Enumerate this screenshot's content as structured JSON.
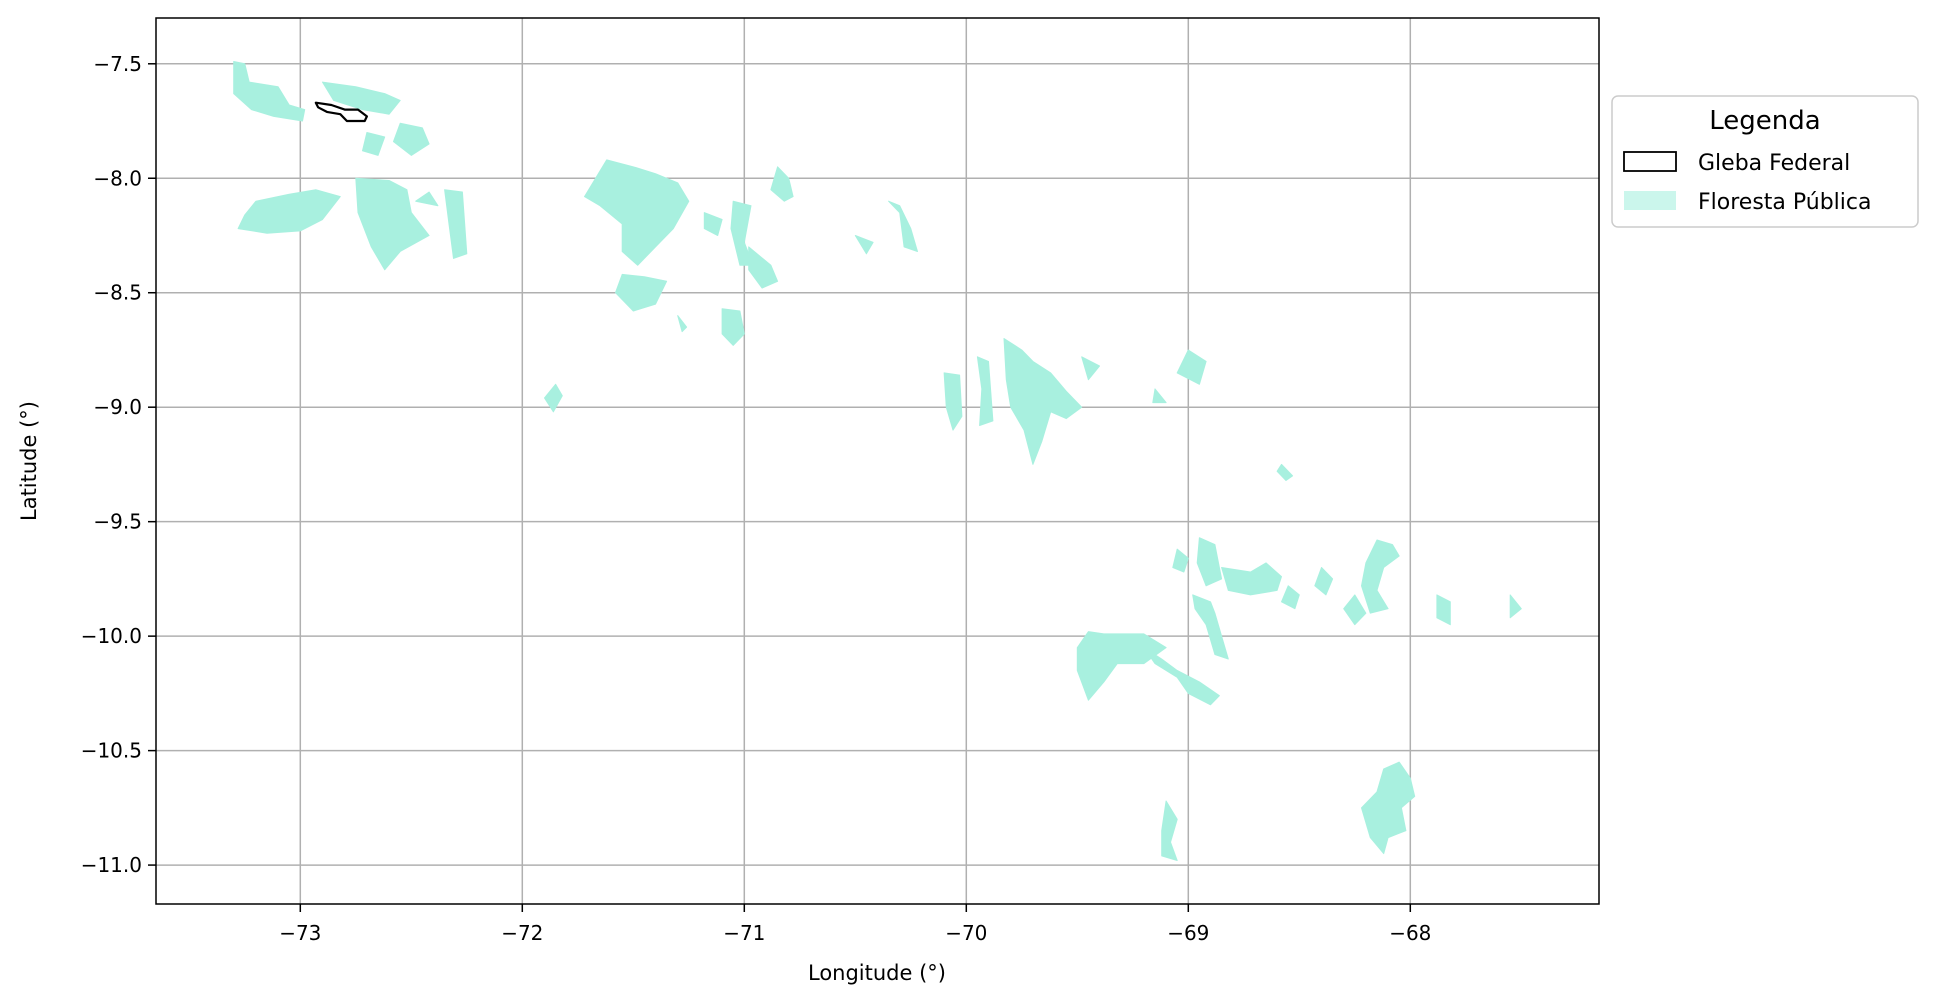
{
  "colors": {
    "forest": "#a8f0df",
    "gleba_edge": "#000000",
    "grid": "#b0b0b0",
    "axes": "#000000"
  },
  "axes": {
    "xlabel": "Longitude (°)",
    "ylabel": "Latitude (°)",
    "xlim": [
      -73.65,
      -67.15
    ],
    "ylim": [
      -11.17,
      -7.3
    ],
    "xticks": [
      -73,
      -72,
      -71,
      -70,
      -69,
      -68
    ],
    "xtick_labels": [
      "−73",
      "−72",
      "−71",
      "−70",
      "−69",
      "−68"
    ],
    "yticks": [
      -7.5,
      -8.0,
      -8.5,
      -9.0,
      -9.5,
      -10.0,
      -10.5,
      -11.0
    ],
    "ytick_labels": [
      "−7.5",
      "−8.0",
      "−8.5",
      "−9.0",
      "−9.5",
      "−10.0",
      "−10.5",
      "−11.0"
    ],
    "grid": true
  },
  "legend": {
    "title": "Legenda",
    "placement": "upper-right-outside",
    "items": [
      {
        "label": "Gleba Federal",
        "style": "outline"
      },
      {
        "label": "Floresta Pública",
        "style": "fill"
      }
    ]
  },
  "chart_data": {
    "type": "map",
    "title": "",
    "xlabel": "Longitude (°)",
    "ylabel": "Latitude (°)",
    "layers": [
      {
        "name": "Gleba Federal",
        "style": "outline",
        "polygons": [
          [
            [
              -72.93,
              -7.67
            ],
            [
              -72.86,
              -7.68
            ],
            [
              -72.8,
              -7.7
            ],
            [
              -72.74,
              -7.7
            ],
            [
              -72.7,
              -7.73
            ],
            [
              -72.71,
              -7.75
            ],
            [
              -72.79,
              -7.75
            ],
            [
              -72.82,
              -7.72
            ],
            [
              -72.88,
              -7.71
            ],
            [
              -72.92,
              -7.69
            ]
          ]
        ]
      },
      {
        "name": "Floresta Pública",
        "style": "fill",
        "polygons": [
          [
            [
              -73.3,
              -7.49
            ],
            [
              -73.25,
              -7.5
            ],
            [
              -73.23,
              -7.58
            ],
            [
              -73.1,
              -7.6
            ],
            [
              -73.05,
              -7.68
            ],
            [
              -72.98,
              -7.7
            ],
            [
              -72.99,
              -7.75
            ],
            [
              -73.12,
              -7.73
            ],
            [
              -73.22,
              -7.7
            ],
            [
              -73.3,
              -7.63
            ]
          ],
          [
            [
              -72.9,
              -7.58
            ],
            [
              -72.75,
              -7.6
            ],
            [
              -72.62,
              -7.63
            ],
            [
              -72.55,
              -7.66
            ],
            [
              -72.6,
              -7.72
            ],
            [
              -72.72,
              -7.7
            ],
            [
              -72.85,
              -7.66
            ]
          ],
          [
            [
              -72.55,
              -7.76
            ],
            [
              -72.45,
              -7.78
            ],
            [
              -72.42,
              -7.85
            ],
            [
              -72.5,
              -7.9
            ],
            [
              -72.58,
              -7.84
            ]
          ],
          [
            [
              -73.2,
              -8.1
            ],
            [
              -73.05,
              -8.07
            ],
            [
              -72.93,
              -8.05
            ],
            [
              -72.82,
              -8.08
            ],
            [
              -72.9,
              -8.18
            ],
            [
              -73.0,
              -8.23
            ],
            [
              -73.15,
              -8.24
            ],
            [
              -73.28,
              -8.22
            ],
            [
              -73.25,
              -8.16
            ]
          ],
          [
            [
              -72.75,
              -8.0
            ],
            [
              -72.6,
              -8.01
            ],
            [
              -72.52,
              -8.05
            ],
            [
              -72.5,
              -8.15
            ],
            [
              -72.42,
              -8.25
            ],
            [
              -72.55,
              -8.32
            ],
            [
              -72.62,
              -8.4
            ],
            [
              -72.68,
              -8.3
            ],
            [
              -72.74,
              -8.15
            ]
          ],
          [
            [
              -72.7,
              -7.8
            ],
            [
              -72.62,
              -7.82
            ],
            [
              -72.65,
              -7.9
            ],
            [
              -72.72,
              -7.88
            ]
          ],
          [
            [
              -72.42,
              -8.06
            ],
            [
              -72.38,
              -8.12
            ],
            [
              -72.48,
              -8.1
            ]
          ],
          [
            [
              -72.35,
              -8.05
            ],
            [
              -72.27,
              -8.06
            ],
            [
              -72.25,
              -8.33
            ],
            [
              -72.31,
              -8.35
            ],
            [
              -72.33,
              -8.2
            ]
          ],
          [
            [
              -71.62,
              -7.92
            ],
            [
              -71.5,
              -7.95
            ],
            [
              -71.4,
              -7.98
            ],
            [
              -71.3,
              -8.02
            ],
            [
              -71.25,
              -8.1
            ],
            [
              -71.32,
              -8.22
            ],
            [
              -71.4,
              -8.3
            ],
            [
              -71.48,
              -8.38
            ],
            [
              -71.55,
              -8.32
            ],
            [
              -71.55,
              -8.2
            ],
            [
              -71.65,
              -8.12
            ],
            [
              -71.72,
              -8.08
            ]
          ],
          [
            [
              -71.55,
              -8.42
            ],
            [
              -71.45,
              -8.43
            ],
            [
              -71.35,
              -8.45
            ],
            [
              -71.4,
              -8.55
            ],
            [
              -71.5,
              -8.58
            ],
            [
              -71.58,
              -8.5
            ]
          ],
          [
            [
              -71.18,
              -8.15
            ],
            [
              -71.1,
              -8.18
            ],
            [
              -71.12,
              -8.25
            ],
            [
              -71.18,
              -8.22
            ]
          ],
          [
            [
              -71.05,
              -8.1
            ],
            [
              -70.97,
              -8.12
            ],
            [
              -71.0,
              -8.28
            ],
            [
              -70.96,
              -8.38
            ],
            [
              -71.02,
              -8.38
            ],
            [
              -71.06,
              -8.22
            ]
          ],
          [
            [
              -70.98,
              -8.3
            ],
            [
              -70.88,
              -8.38
            ],
            [
              -70.85,
              -8.45
            ],
            [
              -70.92,
              -8.48
            ],
            [
              -70.98,
              -8.4
            ]
          ],
          [
            [
              -71.1,
              -8.57
            ],
            [
              -71.02,
              -8.58
            ],
            [
              -71.0,
              -8.68
            ],
            [
              -71.05,
              -8.73
            ],
            [
              -71.1,
              -8.68
            ]
          ],
          [
            [
              -70.85,
              -7.95
            ],
            [
              -70.8,
              -8.0
            ],
            [
              -70.78,
              -8.08
            ],
            [
              -70.82,
              -8.1
            ],
            [
              -70.88,
              -8.05
            ]
          ],
          [
            [
              -71.3,
              -8.6
            ],
            [
              -71.26,
              -8.65
            ],
            [
              -71.28,
              -8.67
            ]
          ],
          [
            [
              -71.85,
              -8.9
            ],
            [
              -71.82,
              -8.95
            ],
            [
              -71.86,
              -9.02
            ],
            [
              -71.9,
              -8.96
            ]
          ],
          [
            [
              -70.35,
              -8.1
            ],
            [
              -70.3,
              -8.15
            ],
            [
              -70.28,
              -8.3
            ],
            [
              -70.22,
              -8.32
            ],
            [
              -70.25,
              -8.22
            ],
            [
              -70.3,
              -8.12
            ]
          ],
          [
            [
              -70.5,
              -8.25
            ],
            [
              -70.42,
              -8.28
            ],
            [
              -70.45,
              -8.33
            ]
          ],
          [
            [
              -70.1,
              -8.85
            ],
            [
              -70.03,
              -8.86
            ],
            [
              -70.02,
              -9.04
            ],
            [
              -70.06,
              -9.1
            ],
            [
              -70.09,
              -9.0
            ]
          ],
          [
            [
              -69.95,
              -8.78
            ],
            [
              -69.9,
              -8.8
            ],
            [
              -69.88,
              -9.06
            ],
            [
              -69.94,
              -9.08
            ],
            [
              -69.93,
              -8.92
            ]
          ],
          [
            [
              -69.83,
              -8.7
            ],
            [
              -69.75,
              -8.75
            ],
            [
              -69.7,
              -8.8
            ],
            [
              -69.62,
              -8.85
            ],
            [
              -69.55,
              -8.93
            ],
            [
              -69.48,
              -9.0
            ],
            [
              -69.55,
              -9.05
            ],
            [
              -69.62,
              -9.02
            ],
            [
              -69.66,
              -9.15
            ],
            [
              -69.7,
              -9.25
            ],
            [
              -69.74,
              -9.1
            ],
            [
              -69.8,
              -9.0
            ],
            [
              -69.82,
              -8.88
            ]
          ],
          [
            [
              -69.48,
              -8.78
            ],
            [
              -69.4,
              -8.82
            ],
            [
              -69.45,
              -8.88
            ]
          ],
          [
            [
              -69.0,
              -8.75
            ],
            [
              -68.92,
              -8.8
            ],
            [
              -68.95,
              -8.9
            ],
            [
              -69.05,
              -8.85
            ]
          ],
          [
            [
              -69.15,
              -8.92
            ],
            [
              -69.1,
              -8.98
            ],
            [
              -69.16,
              -8.98
            ]
          ],
          [
            [
              -68.58,
              -9.25
            ],
            [
              -68.53,
              -9.3
            ],
            [
              -68.56,
              -9.32
            ],
            [
              -68.6,
              -9.28
            ]
          ],
          [
            [
              -69.05,
              -9.62
            ],
            [
              -69.0,
              -9.66
            ],
            [
              -69.02,
              -9.72
            ],
            [
              -69.07,
              -9.7
            ]
          ],
          [
            [
              -68.95,
              -9.57
            ],
            [
              -68.88,
              -9.6
            ],
            [
              -68.85,
              -9.75
            ],
            [
              -68.92,
              -9.78
            ],
            [
              -68.96,
              -9.68
            ]
          ],
          [
            [
              -68.85,
              -9.7
            ],
            [
              -68.72,
              -9.72
            ],
            [
              -68.65,
              -9.68
            ],
            [
              -68.58,
              -9.74
            ],
            [
              -68.6,
              -9.8
            ],
            [
              -68.72,
              -9.82
            ],
            [
              -68.82,
              -9.8
            ]
          ],
          [
            [
              -68.98,
              -9.82
            ],
            [
              -68.9,
              -9.85
            ],
            [
              -68.88,
              -9.9
            ],
            [
              -68.85,
              -10.0
            ],
            [
              -68.82,
              -10.1
            ],
            [
              -68.88,
              -10.08
            ],
            [
              -68.92,
              -9.95
            ],
            [
              -68.97,
              -9.88
            ]
          ],
          [
            [
              -69.45,
              -9.98
            ],
            [
              -69.38,
              -9.99
            ],
            [
              -69.2,
              -9.99
            ],
            [
              -69.1,
              -10.05
            ],
            [
              -69.2,
              -10.12
            ],
            [
              -69.32,
              -10.12
            ],
            [
              -69.38,
              -10.2
            ],
            [
              -69.45,
              -10.28
            ],
            [
              -69.5,
              -10.15
            ],
            [
              -69.5,
              -10.05
            ]
          ],
          [
            [
              -69.2,
              -10.05
            ],
            [
              -69.15,
              -10.12
            ],
            [
              -69.05,
              -10.18
            ],
            [
              -69.0,
              -10.25
            ],
            [
              -68.9,
              -10.3
            ],
            [
              -68.86,
              -10.26
            ],
            [
              -68.95,
              -10.2
            ],
            [
              -69.05,
              -10.15
            ],
            [
              -69.12,
              -10.1
            ]
          ],
          [
            [
              -68.15,
              -9.58
            ],
            [
              -68.08,
              -9.6
            ],
            [
              -68.05,
              -9.65
            ],
            [
              -68.12,
              -9.7
            ],
            [
              -68.15,
              -9.8
            ],
            [
              -68.1,
              -9.88
            ],
            [
              -68.18,
              -9.9
            ],
            [
              -68.22,
              -9.78
            ],
            [
              -68.2,
              -9.68
            ]
          ],
          [
            [
              -67.88,
              -9.82
            ],
            [
              -67.82,
              -9.85
            ],
            [
              -67.82,
              -9.95
            ],
            [
              -67.88,
              -9.92
            ]
          ],
          [
            [
              -68.25,
              -9.82
            ],
            [
              -68.2,
              -9.9
            ],
            [
              -68.25,
              -9.95
            ],
            [
              -68.3,
              -9.88
            ]
          ],
          [
            [
              -68.05,
              -10.55
            ],
            [
              -68.0,
              -10.62
            ],
            [
              -67.98,
              -10.7
            ],
            [
              -68.04,
              -10.75
            ],
            [
              -68.02,
              -10.85
            ],
            [
              -68.1,
              -10.88
            ],
            [
              -68.12,
              -10.95
            ],
            [
              -68.18,
              -10.88
            ],
            [
              -68.22,
              -10.75
            ],
            [
              -68.15,
              -10.68
            ],
            [
              -68.12,
              -10.58
            ]
          ],
          [
            [
              -69.1,
              -10.72
            ],
            [
              -69.05,
              -10.8
            ],
            [
              -69.08,
              -10.9
            ],
            [
              -69.05,
              -10.98
            ],
            [
              -69.12,
              -10.96
            ],
            [
              -69.12,
              -10.85
            ]
          ],
          [
            [
              -68.4,
              -9.7
            ],
            [
              -68.35,
              -9.75
            ],
            [
              -68.38,
              -9.82
            ],
            [
              -68.43,
              -9.78
            ]
          ],
          [
            [
              -68.55,
              -9.78
            ],
            [
              -68.5,
              -9.82
            ],
            [
              -68.52,
              -9.88
            ],
            [
              -68.58,
              -9.85
            ]
          ],
          [
            [
              -67.55,
              -9.82
            ],
            [
              -67.5,
              -9.88
            ],
            [
              -67.55,
              -9.92
            ]
          ]
        ]
      }
    ]
  }
}
